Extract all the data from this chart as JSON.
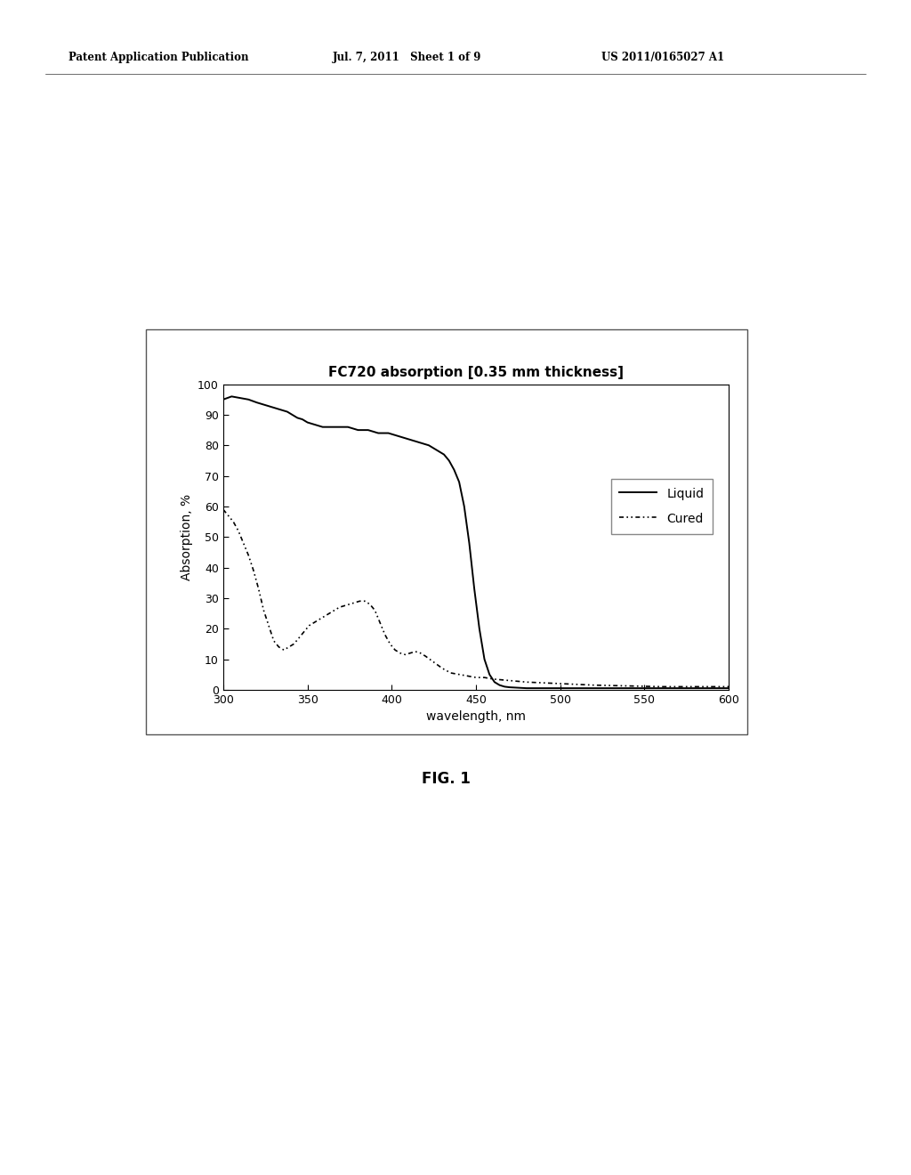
{
  "title": "FC720 absorption [0.35 mm thickness]",
  "xlabel": "wavelength, nm",
  "ylabel": "Absorption, %",
  "xlim": [
    300,
    600
  ],
  "ylim": [
    0,
    100
  ],
  "xticks": [
    300,
    350,
    400,
    450,
    500,
    550,
    600
  ],
  "yticks": [
    0,
    10,
    20,
    30,
    40,
    50,
    60,
    70,
    80,
    90,
    100
  ],
  "background_color": "#ffffff",
  "header_left": "Patent Application Publication",
  "header_mid": "Jul. 7, 2011   Sheet 1 of 9",
  "header_right": "US 2011/0165027 A1",
  "fig_label": "FIG. 1",
  "liquid_color": "#000000",
  "cured_color": "#000000",
  "liquid_x": [
    300,
    305,
    310,
    315,
    320,
    323,
    326,
    329,
    332,
    335,
    338,
    341,
    344,
    347,
    350,
    353,
    356,
    359,
    362,
    365,
    368,
    371,
    374,
    377,
    380,
    383,
    386,
    389,
    392,
    395,
    398,
    401,
    404,
    407,
    410,
    413,
    416,
    419,
    422,
    425,
    428,
    431,
    434,
    437,
    440,
    443,
    446,
    449,
    452,
    455,
    458,
    461,
    464,
    467,
    470,
    480,
    490,
    500,
    520,
    540,
    560,
    580,
    600
  ],
  "liquid_y": [
    95,
    96,
    95.5,
    95,
    94,
    93.5,
    93,
    92.5,
    92,
    91.5,
    91,
    90,
    89,
    88.5,
    87.5,
    87,
    86.5,
    86,
    86,
    86,
    86,
    86,
    86,
    85.5,
    85,
    85,
    85,
    84.5,
    84,
    84,
    84,
    83.5,
    83,
    82.5,
    82,
    81.5,
    81,
    80.5,
    80,
    79,
    78,
    77,
    75,
    72,
    68,
    60,
    48,
    33,
    20,
    10,
    5,
    2.5,
    1.5,
    1,
    0.8,
    0.5,
    0.5,
    0.5,
    0.5,
    0.5,
    0.5,
    0.5,
    0.5
  ],
  "cured_x": [
    300,
    303,
    306,
    309,
    312,
    315,
    318,
    321,
    324,
    327,
    330,
    333,
    336,
    339,
    342,
    345,
    348,
    351,
    354,
    357,
    360,
    363,
    366,
    369,
    372,
    375,
    378,
    381,
    384,
    387,
    390,
    393,
    396,
    399,
    402,
    405,
    408,
    411,
    414,
    417,
    420,
    425,
    430,
    435,
    440,
    445,
    450,
    455,
    460,
    470,
    480,
    500,
    520,
    560,
    600
  ],
  "cured_y": [
    59,
    57,
    55,
    52,
    48,
    44,
    39,
    33,
    26,
    21,
    16,
    14,
    13,
    14,
    15,
    17,
    19,
    21,
    22,
    23,
    24,
    25,
    26,
    27,
    27.5,
    28,
    28.5,
    29,
    29,
    28,
    26,
    22,
    18,
    15,
    13,
    12,
    11.5,
    12,
    12.5,
    12,
    11,
    9,
    7,
    5.5,
    5,
    4.5,
    4,
    4,
    3.5,
    3,
    2.5,
    2,
    1.5,
    1,
    1
  ]
}
